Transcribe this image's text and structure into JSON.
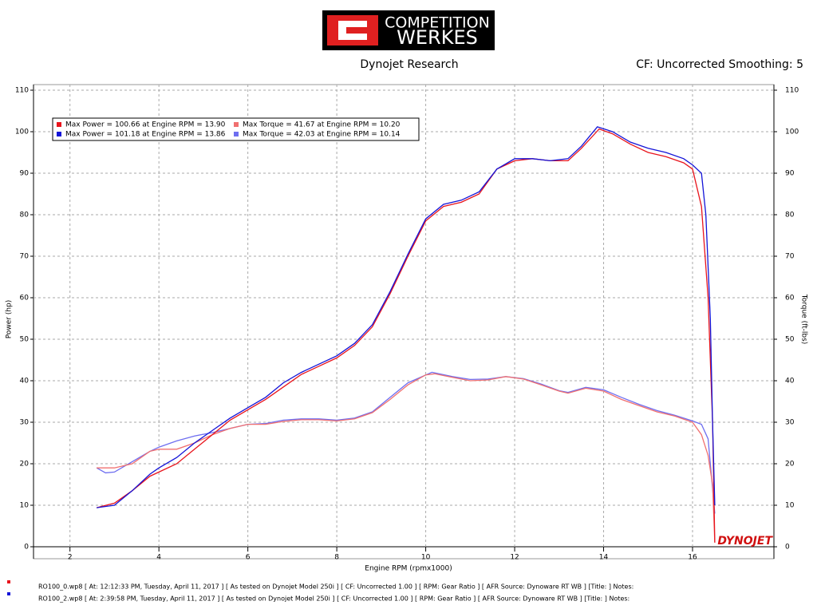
{
  "header": {
    "logo_top": "COMPETITION",
    "logo_bottom": "WERKES",
    "left": "Dynojet Research",
    "right": "CF: Uncorrected Smoothing: 5",
    "brand": "DYNOJET"
  },
  "chart_data": {
    "type": "line",
    "x_label": "Engine RPM (rpmx1000)",
    "y_label": "Power (hp)",
    "y2_label": "Torque (ft-lbs)",
    "xlim": [
      1.18,
      17.83
    ],
    "xticks": [
      2,
      4,
      6,
      8,
      10,
      12,
      14,
      16
    ],
    "ylim": [
      0,
      110
    ],
    "yticks": [
      0,
      10,
      20,
      30,
      40,
      50,
      60,
      70,
      80,
      90,
      100,
      110
    ],
    "y2lim": [
      0,
      110
    ],
    "y2ticks": [
      0,
      10,
      20,
      30,
      40,
      50,
      60,
      70,
      80,
      90,
      100,
      110
    ],
    "grid": true,
    "legend": "upper left",
    "series": [
      {
        "name": "Max Power = 100.66 at Engine RPM = 13.90",
        "color": "#e8141c",
        "x": [
          2.6,
          3.0,
          3.4,
          3.8,
          4.0,
          4.4,
          4.8,
          5.2,
          5.6,
          6.0,
          6.4,
          6.8,
          7.2,
          7.6,
          8.0,
          8.4,
          8.8,
          9.2,
          9.6,
          10.0,
          10.4,
          10.8,
          11.2,
          11.6,
          12.0,
          12.4,
          12.8,
          13.2,
          13.5,
          13.9,
          14.2,
          14.6,
          15.0,
          15.4,
          15.8,
          16.0,
          16.2,
          16.35,
          16.45,
          16.5
        ],
        "values": [
          9.4,
          10.5,
          13.5,
          17,
          18,
          20,
          23.5,
          27,
          30.5,
          33,
          35.5,
          38.5,
          41.5,
          43.5,
          45.5,
          48.5,
          53,
          61,
          70,
          78.5,
          82,
          83,
          85,
          91,
          93,
          93.5,
          93,
          93,
          96,
          100.66,
          99.5,
          97,
          95,
          94,
          92.5,
          91,
          82,
          60,
          30,
          1
        ]
      },
      {
        "name": "Max Power = 101.18 at Engine RPM = 13.86",
        "color": "#1414d8",
        "x": [
          2.6,
          3.0,
          3.4,
          3.8,
          4.0,
          4.4,
          4.8,
          5.2,
          5.6,
          6.0,
          6.4,
          6.8,
          7.2,
          7.6,
          8.0,
          8.4,
          8.8,
          9.2,
          9.6,
          10.0,
          10.4,
          10.8,
          11.2,
          11.6,
          12.0,
          12.4,
          12.8,
          13.2,
          13.5,
          13.86,
          14.2,
          14.6,
          15.0,
          15.4,
          15.8,
          16.0,
          16.2,
          16.3,
          16.4,
          16.45,
          16.5
        ],
        "values": [
          9.4,
          10,
          13.5,
          17.5,
          19,
          21.5,
          25,
          28,
          31,
          33.5,
          36,
          39.5,
          42,
          44,
          46,
          49,
          53.5,
          61.5,
          70.5,
          79,
          82.5,
          83.5,
          85.5,
          91,
          93.5,
          93.5,
          93,
          93.5,
          96.5,
          101.18,
          100,
          97.5,
          96,
          95,
          93.5,
          92,
          90,
          80,
          55,
          30,
          10
        ]
      },
      {
        "name": "Max Torque = 41.67 at Engine RPM = 10.20",
        "color": "#f07070",
        "axis": "y2",
        "x": [
          2.6,
          2.8,
          3.0,
          3.4,
          3.8,
          4.0,
          4.4,
          4.8,
          5.2,
          5.6,
          6.0,
          6.4,
          6.8,
          7.2,
          7.6,
          8.0,
          8.4,
          8.8,
          9.2,
          9.6,
          10.0,
          10.2,
          10.6,
          11.0,
          11.4,
          11.8,
          12.2,
          12.6,
          13.0,
          13.2,
          13.6,
          14.0,
          14.4,
          14.8,
          15.2,
          15.6,
          16.0,
          16.2,
          16.35,
          16.45,
          16.5
        ],
        "values": [
          19,
          19,
          19,
          20,
          23,
          23.5,
          23.5,
          25,
          27,
          28.5,
          29.5,
          29.5,
          30.2,
          30.6,
          30.6,
          30.3,
          30.8,
          32.3,
          35.5,
          39,
          41.4,
          41.67,
          40.8,
          40,
          40.2,
          41,
          40.4,
          39,
          37.5,
          37,
          38.2,
          37.5,
          35.5,
          34,
          32.5,
          31.5,
          30,
          27,
          22,
          15,
          1
        ]
      },
      {
        "name": "Max Torque = 42.03 at Engine RPM = 10.14",
        "color": "#6e6ef0",
        "axis": "y2",
        "x": [
          2.6,
          2.8,
          3.0,
          3.4,
          3.8,
          4.0,
          4.4,
          4.8,
          5.2,
          5.6,
          6.0,
          6.4,
          6.8,
          7.2,
          7.6,
          8.0,
          8.4,
          8.8,
          9.2,
          9.6,
          10.14,
          10.6,
          11.0,
          11.4,
          11.8,
          12.2,
          12.6,
          13.0,
          13.2,
          13.6,
          14.0,
          14.4,
          14.8,
          15.2,
          15.6,
          16.0,
          16.2,
          16.35,
          16.45,
          16.5
        ],
        "values": [
          19,
          17.8,
          18,
          20.5,
          23,
          24,
          25.5,
          26.7,
          27.5,
          28.5,
          29.5,
          29.7,
          30.5,
          30.8,
          30.8,
          30.5,
          31,
          32.5,
          36,
          39.5,
          42.03,
          41,
          40.3,
          40.4,
          41,
          40.5,
          39.2,
          37.6,
          37.2,
          38.4,
          37.8,
          36,
          34.3,
          32.8,
          31.7,
          30.3,
          29.5,
          26,
          14,
          8
        ]
      }
    ]
  },
  "footnotes": [
    "RO100_0.wp8 [ At: 12:12:33 PM, Tuesday, April 11, 2017 ] [ As tested on Dynojet Model 250i ] [ CF: Uncorrected 1.00 ] [ RPM: Gear Ratio ] [ AFR Source: Dynoware RT WB ] [Title: ]  Notes:",
    "RO100_2.wp8 [ At: 2:39:58 PM, Tuesday, April 11, 2017 ] [ As tested on Dynojet Model 250i ] [ CF: Uncorrected 1.00 ] [ RPM: Gear Ratio ] [ AFR Source: Dynoware RT WB ] [Title: ]  Notes:"
  ]
}
